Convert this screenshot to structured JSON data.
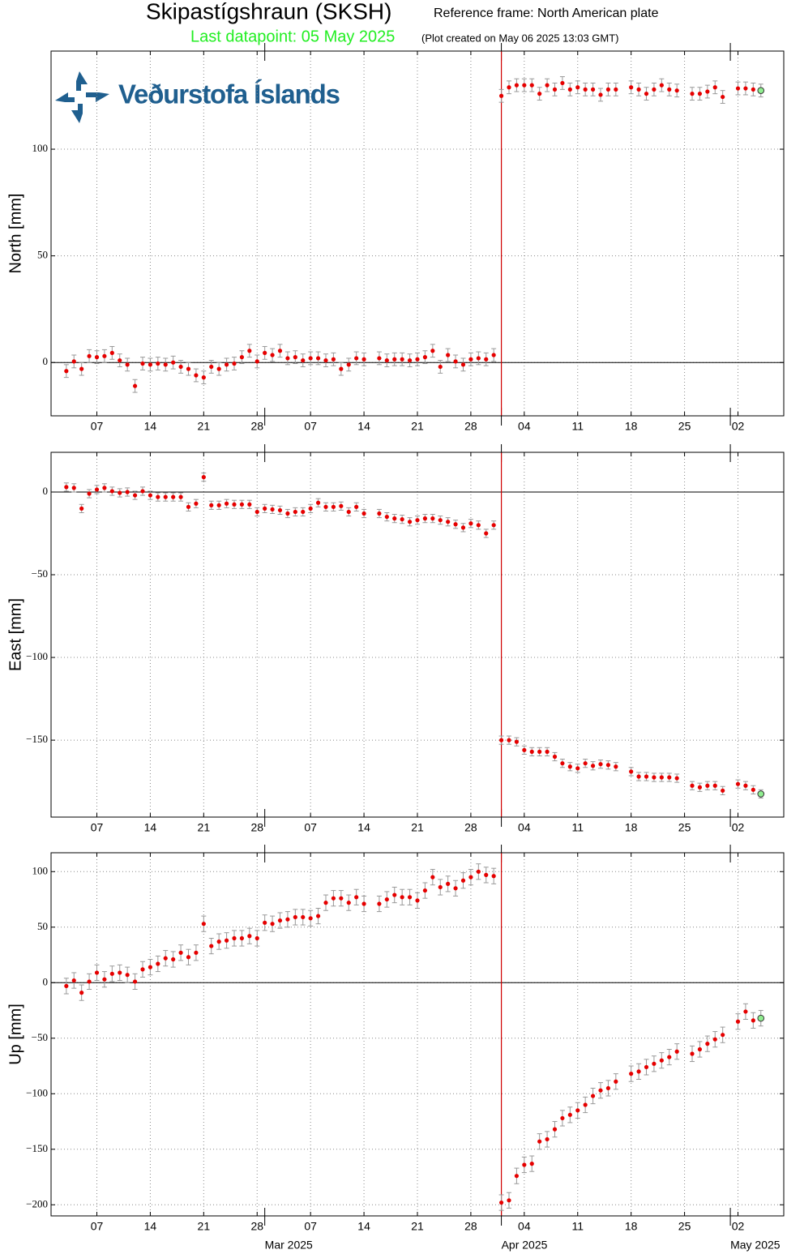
{
  "header": {
    "title": "Skipastígshraun (SKSH)",
    "reference_frame": "Reference frame: North American plate",
    "last_datapoint": "Last datapoint: 05 May 2025",
    "plot_created": "(Plot created on May 06 2025 13:03 GMT)",
    "logo_text": "Veðurstofa Íslands"
  },
  "chart_data": [
    {
      "type": "scatter",
      "ylabel": "North [mm]",
      "color": "#e60000",
      "error_color": "#999999",
      "last_point_color": "#90ee90",
      "error": 3,
      "grid": true,
      "event_line": {
        "x": "2025-04-01",
        "color": "#d00000"
      },
      "xlim": [
        "2025-02-01",
        "2025-05-08"
      ],
      "ylim": [
        -25,
        146
      ],
      "yticks": [
        0,
        50,
        100
      ],
      "xticks": [
        {
          "value": "2025-02-07",
          "label": "07"
        },
        {
          "value": "2025-02-14",
          "label": "14"
        },
        {
          "value": "2025-02-21",
          "label": "21"
        },
        {
          "value": "2025-02-28",
          "label": "28"
        },
        {
          "value": "2025-03-07",
          "label": "07"
        },
        {
          "value": "2025-03-14",
          "label": "14"
        },
        {
          "value": "2025-03-21",
          "label": "21"
        },
        {
          "value": "2025-03-28",
          "label": "28"
        },
        {
          "value": "2025-04-04",
          "label": "04"
        },
        {
          "value": "2025-04-11",
          "label": "11"
        },
        {
          "value": "2025-04-18",
          "label": "18"
        },
        {
          "value": "2025-04-25",
          "label": "25"
        },
        {
          "value": "2025-05-02",
          "label": "02"
        }
      ],
      "month_ticks": [
        "2025-03-01",
        "2025-04-01",
        "2025-05-01"
      ],
      "x": [
        "2025-02-03",
        "2025-02-04",
        "2025-02-05",
        "2025-02-06",
        "2025-02-07",
        "2025-02-08",
        "2025-02-09",
        "2025-02-10",
        "2025-02-11",
        "2025-02-12",
        "2025-02-13",
        "2025-02-14",
        "2025-02-15",
        "2025-02-16",
        "2025-02-17",
        "2025-02-18",
        "2025-02-19",
        "2025-02-20",
        "2025-02-21",
        "2025-02-22",
        "2025-02-23",
        "2025-02-24",
        "2025-02-25",
        "2025-02-26",
        "2025-02-27",
        "2025-02-28",
        "2025-03-01",
        "2025-03-02",
        "2025-03-03",
        "2025-03-04",
        "2025-03-05",
        "2025-03-06",
        "2025-03-07",
        "2025-03-08",
        "2025-03-09",
        "2025-03-10",
        "2025-03-11",
        "2025-03-12",
        "2025-03-13",
        "2025-03-14",
        "2025-03-15",
        "2025-03-16",
        "2025-03-17",
        "2025-03-18",
        "2025-03-19",
        "2025-03-20",
        "2025-03-21",
        "2025-03-22",
        "2025-03-23",
        "2025-03-24",
        "2025-03-25",
        "2025-03-26",
        "2025-03-27",
        "2025-03-28",
        "2025-03-29",
        "2025-03-30",
        "2025-03-31",
        "2025-04-01",
        "2025-04-02",
        "2025-04-03",
        "2025-04-04",
        "2025-04-05",
        "2025-04-06",
        "2025-04-07",
        "2025-04-08",
        "2025-04-09",
        "2025-04-10",
        "2025-04-11",
        "2025-04-12",
        "2025-04-13",
        "2025-04-14",
        "2025-04-15",
        "2025-04-16",
        "2025-04-17",
        "2025-04-18",
        "2025-04-19",
        "2025-04-20",
        "2025-04-21",
        "2025-04-22",
        "2025-04-23",
        "2025-04-24",
        "2025-04-25",
        "2025-04-26",
        "2025-04-27",
        "2025-04-28",
        "2025-04-29",
        "2025-04-30",
        "2025-05-01",
        "2025-05-02",
        "2025-05-03",
        "2025-05-04",
        "2025-05-05"
      ],
      "values": [
        -4,
        0.5,
        -3,
        3,
        2.5,
        3,
        4.5,
        1,
        -1,
        -11,
        -0.5,
        -1,
        -0.5,
        -1,
        0,
        -2,
        -3,
        -6,
        -7,
        -2,
        -3,
        -1,
        -0.5,
        2.5,
        5.5,
        0.5,
        4.5,
        3.5,
        5.5,
        2,
        2.5,
        1,
        2,
        2,
        1,
        1.5,
        -3,
        -1,
        2,
        1.5,
        null,
        2,
        1,
        1.5,
        1.5,
        1,
        1.5,
        2.5,
        5.5,
        -2,
        3.5,
        0.5,
        -1,
        1.5,
        2,
        1.5,
        3.5,
        125,
        129,
        130,
        130,
        130,
        126,
        130,
        128,
        131,
        128,
        129,
        128,
        128,
        125.5,
        128,
        128,
        null,
        129,
        128,
        126,
        128,
        130,
        128,
        127.5,
        null,
        126,
        126,
        127,
        129,
        124.5,
        null,
        128.5,
        128.5,
        128,
        127.5
      ]
    },
    {
      "type": "scatter",
      "ylabel": "East [mm]",
      "color": "#e60000",
      "error_color": "#999999",
      "last_point_color": "#90ee90",
      "error": 2.5,
      "grid": true,
      "event_line": {
        "x": "2025-04-01",
        "color": "#d00000"
      },
      "xlim": [
        "2025-02-01",
        "2025-05-08"
      ],
      "ylim": [
        -196.5,
        24
      ],
      "yticks": [
        0,
        {
          "value": -50,
          "label": "−50"
        },
        {
          "value": -100,
          "label": "−100"
        },
        {
          "value": -150,
          "label": "−150"
        }
      ],
      "xticks": [
        {
          "value": "2025-02-07",
          "label": "07"
        },
        {
          "value": "2025-02-14",
          "label": "14"
        },
        {
          "value": "2025-02-21",
          "label": "21"
        },
        {
          "value": "2025-02-28",
          "label": "28"
        },
        {
          "value": "2025-03-07",
          "label": "07"
        },
        {
          "value": "2025-03-14",
          "label": "14"
        },
        {
          "value": "2025-03-21",
          "label": "21"
        },
        {
          "value": "2025-03-28",
          "label": "28"
        },
        {
          "value": "2025-04-04",
          "label": "04"
        },
        {
          "value": "2025-04-11",
          "label": "11"
        },
        {
          "value": "2025-04-18",
          "label": "18"
        },
        {
          "value": "2025-04-25",
          "label": "25"
        },
        {
          "value": "2025-05-02",
          "label": "02"
        }
      ],
      "month_ticks": [
        "2025-03-01",
        "2025-04-01",
        "2025-05-01"
      ],
      "x": [
        "2025-02-03",
        "2025-02-04",
        "2025-02-05",
        "2025-02-06",
        "2025-02-07",
        "2025-02-08",
        "2025-02-09",
        "2025-02-10",
        "2025-02-11",
        "2025-02-12",
        "2025-02-13",
        "2025-02-14",
        "2025-02-15",
        "2025-02-16",
        "2025-02-17",
        "2025-02-18",
        "2025-02-19",
        "2025-02-20",
        "2025-02-21",
        "2025-02-22",
        "2025-02-23",
        "2025-02-24",
        "2025-02-25",
        "2025-02-26",
        "2025-02-27",
        "2025-02-28",
        "2025-03-01",
        "2025-03-02",
        "2025-03-03",
        "2025-03-04",
        "2025-03-05",
        "2025-03-06",
        "2025-03-07",
        "2025-03-08",
        "2025-03-09",
        "2025-03-10",
        "2025-03-11",
        "2025-03-12",
        "2025-03-13",
        "2025-03-14",
        "2025-03-15",
        "2025-03-16",
        "2025-03-17",
        "2025-03-18",
        "2025-03-19",
        "2025-03-20",
        "2025-03-21",
        "2025-03-22",
        "2025-03-23",
        "2025-03-24",
        "2025-03-25",
        "2025-03-26",
        "2025-03-27",
        "2025-03-28",
        "2025-03-29",
        "2025-03-30",
        "2025-03-31",
        "2025-04-01",
        "2025-04-02",
        "2025-04-03",
        "2025-04-04",
        "2025-04-05",
        "2025-04-06",
        "2025-04-07",
        "2025-04-08",
        "2025-04-09",
        "2025-04-10",
        "2025-04-11",
        "2025-04-12",
        "2025-04-13",
        "2025-04-14",
        "2025-04-15",
        "2025-04-16",
        "2025-04-17",
        "2025-04-18",
        "2025-04-19",
        "2025-04-20",
        "2025-04-21",
        "2025-04-22",
        "2025-04-23",
        "2025-04-24",
        "2025-04-25",
        "2025-04-26",
        "2025-04-27",
        "2025-04-28",
        "2025-04-29",
        "2025-04-30",
        "2025-05-01",
        "2025-05-02",
        "2025-05-03",
        "2025-05-04",
        "2025-05-05"
      ],
      "values": [
        3,
        2.5,
        -10,
        -1,
        1.5,
        2.5,
        0.5,
        -0.5,
        0,
        -2,
        0.5,
        -2,
        -3,
        -3,
        -3,
        -3,
        -9,
        -7,
        9,
        -8,
        -8,
        -7,
        -7.5,
        -7.5,
        -7.5,
        -12,
        -10,
        -10.5,
        -11,
        -13,
        -12,
        -12,
        -10,
        -6.5,
        -9,
        -9,
        -8.5,
        -12,
        -9,
        -13,
        null,
        -13,
        -15,
        -16,
        -16.5,
        -18,
        -17,
        -16,
        -16,
        -17,
        -18,
        -19.5,
        -21.5,
        -19,
        -20,
        -25,
        -20,
        -150,
        -150,
        -151,
        -156,
        -157,
        -157,
        -157,
        -160,
        -164,
        -166,
        -167,
        -164,
        -165.5,
        -164.5,
        -165,
        -166,
        null,
        -169,
        -172,
        -172,
        -172.5,
        -172.5,
        -172.5,
        -173,
        null,
        -177.5,
        -178.5,
        -177.5,
        -177.5,
        -180.5,
        null,
        -176.5,
        -177.5,
        -180,
        -182.5
      ]
    },
    {
      "type": "scatter",
      "ylabel": "Up [mm]",
      "color": "#e60000",
      "error_color": "#999999",
      "last_point_color": "#90ee90",
      "error": 7,
      "grid": true,
      "event_line": {
        "x": "2025-04-01",
        "color": "#d00000"
      },
      "xlim": [
        "2025-02-01",
        "2025-05-08"
      ],
      "ylim": [
        -210,
        117
      ],
      "yticks": [
        100,
        50,
        0,
        {
          "value": -50,
          "label": "−50"
        },
        {
          "value": -100,
          "label": "−100"
        },
        {
          "value": -150,
          "label": "−150"
        },
        {
          "value": -200,
          "label": "−200"
        }
      ],
      "xticks": [
        {
          "value": "2025-02-07",
          "label": "07"
        },
        {
          "value": "2025-02-14",
          "label": "14"
        },
        {
          "value": "2025-02-21",
          "label": "21"
        },
        {
          "value": "2025-02-28",
          "label": "28"
        },
        {
          "value": "2025-03-07",
          "label": "07"
        },
        {
          "value": "2025-03-14",
          "label": "14"
        },
        {
          "value": "2025-03-21",
          "label": "21"
        },
        {
          "value": "2025-03-28",
          "label": "28"
        },
        {
          "value": "2025-04-04",
          "label": "04"
        },
        {
          "value": "2025-04-11",
          "label": "11"
        },
        {
          "value": "2025-04-18",
          "label": "18"
        },
        {
          "value": "2025-04-25",
          "label": "25"
        },
        {
          "value": "2025-05-02",
          "label": "02"
        }
      ],
      "month_ticks": [
        {
          "value": "2025-03-01",
          "label": "Mar 2025"
        },
        {
          "value": "2025-04-01",
          "label": "Apr 2025"
        },
        {
          "value": "2025-05-01",
          "label": "May 2025"
        }
      ],
      "x": [
        "2025-02-03",
        "2025-02-04",
        "2025-02-05",
        "2025-02-06",
        "2025-02-07",
        "2025-02-08",
        "2025-02-09",
        "2025-02-10",
        "2025-02-11",
        "2025-02-12",
        "2025-02-13",
        "2025-02-14",
        "2025-02-15",
        "2025-02-16",
        "2025-02-17",
        "2025-02-18",
        "2025-02-19",
        "2025-02-20",
        "2025-02-21",
        "2025-02-22",
        "2025-02-23",
        "2025-02-24",
        "2025-02-25",
        "2025-02-26",
        "2025-02-27",
        "2025-02-28",
        "2025-03-01",
        "2025-03-02",
        "2025-03-03",
        "2025-03-04",
        "2025-03-05",
        "2025-03-06",
        "2025-03-07",
        "2025-03-08",
        "2025-03-09",
        "2025-03-10",
        "2025-03-11",
        "2025-03-12",
        "2025-03-13",
        "2025-03-14",
        "2025-03-15",
        "2025-03-16",
        "2025-03-17",
        "2025-03-18",
        "2025-03-19",
        "2025-03-20",
        "2025-03-21",
        "2025-03-22",
        "2025-03-23",
        "2025-03-24",
        "2025-03-25",
        "2025-03-26",
        "2025-03-27",
        "2025-03-28",
        "2025-03-29",
        "2025-03-30",
        "2025-03-31",
        "2025-04-01",
        "2025-04-02",
        "2025-04-03",
        "2025-04-04",
        "2025-04-05",
        "2025-04-06",
        "2025-04-07",
        "2025-04-08",
        "2025-04-09",
        "2025-04-10",
        "2025-04-11",
        "2025-04-12",
        "2025-04-13",
        "2025-04-14",
        "2025-04-15",
        "2025-04-16",
        "2025-04-17",
        "2025-04-18",
        "2025-04-19",
        "2025-04-20",
        "2025-04-21",
        "2025-04-22",
        "2025-04-23",
        "2025-04-24",
        "2025-04-25",
        "2025-04-26",
        "2025-04-27",
        "2025-04-28",
        "2025-04-29",
        "2025-04-30",
        "2025-05-01",
        "2025-05-02",
        "2025-05-03",
        "2025-05-04",
        "2025-05-05"
      ],
      "values": [
        -3,
        2,
        -9,
        1,
        9,
        3,
        8,
        9,
        7,
        1,
        12,
        14,
        17,
        22,
        21,
        27,
        23,
        27,
        53,
        33,
        37,
        38,
        40,
        40,
        42,
        40,
        54,
        53,
        56,
        57,
        59,
        59,
        58,
        60,
        72,
        76,
        76,
        72,
        77,
        71,
        null,
        71,
        75,
        79,
        77,
        77,
        74,
        83,
        95,
        86,
        89,
        85,
        92,
        95,
        100,
        97,
        96,
        -198,
        -196,
        -174,
        -164,
        -163,
        -143,
        -141,
        -132,
        -122,
        -119,
        -115,
        -110,
        -102,
        -97,
        -95,
        -89,
        null,
        -82,
        -80,
        -76,
        -73,
        -70,
        -67,
        -62,
        null,
        -64,
        -60,
        -55,
        -51,
        -47,
        null,
        -35,
        -26,
        -34,
        -32
      ]
    }
  ]
}
